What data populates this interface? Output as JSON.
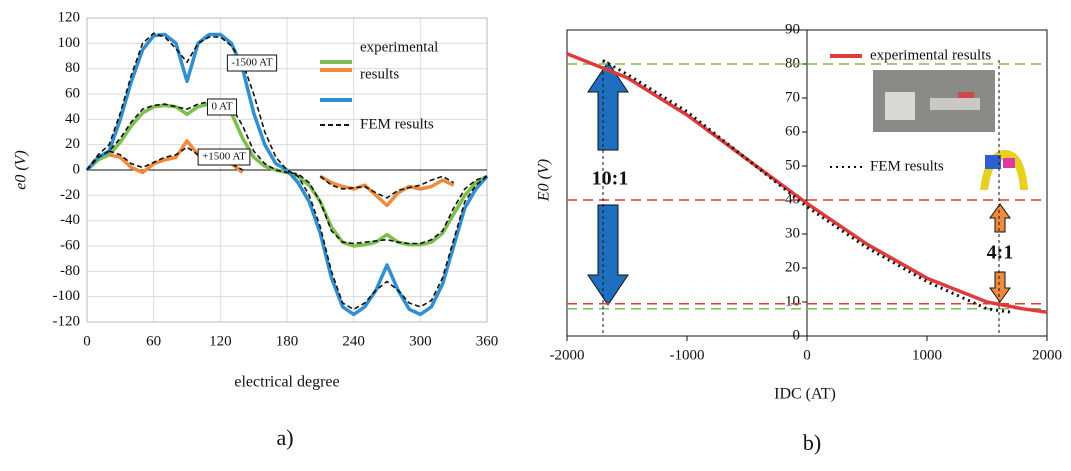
{
  "chart_data": [
    {
      "type": "line",
      "ylabel": "e0 (V)",
      "xlabel": "electrical degree",
      "caption": "a)",
      "xlim": [
        0,
        360
      ],
      "xticks": [
        0,
        60,
        120,
        180,
        240,
        300,
        360
      ],
      "ylim": [
        -120,
        120
      ],
      "yticks": [
        -120,
        -100,
        -80,
        -60,
        -40,
        -20,
        0,
        20,
        40,
        60,
        80,
        100,
        120
      ],
      "grid": true,
      "x": [
        0,
        10,
        20,
        30,
        40,
        50,
        60,
        70,
        80,
        90,
        100,
        110,
        120,
        130,
        140,
        150,
        160,
        170,
        180,
        190,
        200,
        210,
        220,
        230,
        240,
        250,
        260,
        270,
        280,
        290,
        300,
        310,
        320,
        330,
        340,
        350,
        360
      ],
      "series": [
        {
          "name": "experimental",
          "color": "#7cbf4e",
          "dash": false,
          "legend": true,
          "values": [
            0,
            8,
            12,
            22,
            35,
            45,
            50,
            51,
            50,
            44,
            50,
            52,
            53,
            45,
            25,
            10,
            3,
            0,
            -2,
            -5,
            -12,
            -25,
            -45,
            -57,
            -60,
            -59,
            -57,
            -51,
            -57,
            -59,
            -59,
            -57,
            -50,
            -35,
            -20,
            -10,
            -5
          ]
        },
        {
          "name": "results",
          "color": "#f08a3c",
          "dash": false,
          "legend": true,
          "values": [
            null,
            null,
            12,
            10,
            2,
            -2,
            5,
            8,
            10,
            23,
            12,
            10,
            12,
            5,
            -2,
            null,
            null,
            null,
            null,
            null,
            null,
            -5,
            -10,
            -13,
            -15,
            -12,
            -20,
            -28,
            -18,
            -13,
            -15,
            -13,
            -8,
            -12,
            null,
            null,
            null
          ]
        },
        {
          "name": null,
          "color": "#2f8fd0",
          "dash": false,
          "legend": true,
          "values": [
            0,
            10,
            15,
            40,
            70,
            95,
            106,
            107,
            100,
            70,
            100,
            107,
            107,
            100,
            80,
            45,
            20,
            5,
            0,
            -10,
            -25,
            -50,
            -85,
            -108,
            -114,
            -108,
            -95,
            -75,
            -95,
            -110,
            -114,
            -108,
            -90,
            -60,
            -30,
            -15,
            -5
          ]
        },
        {
          "name": "FEM results",
          "color": "#111111",
          "dash": true,
          "legend": true,
          "values": [
            0,
            12,
            20,
            45,
            75,
            100,
            108,
            105,
            96,
            85,
            100,
            105,
            105,
            98,
            85,
            60,
            30,
            10,
            0,
            -5,
            -20,
            -45,
            -80,
            -105,
            -110,
            -105,
            -95,
            -88,
            -95,
            -105,
            -108,
            -103,
            -85,
            -55,
            -25,
            -12,
            -5
          ]
        },
        {
          "name": null,
          "color": "#111111",
          "dash": true,
          "legend": false,
          "values": [
            0,
            10,
            15,
            25,
            38,
            48,
            51,
            52,
            50,
            48,
            52,
            54,
            55,
            50,
            35,
            15,
            5,
            0,
            -2,
            -3,
            -10,
            -25,
            -48,
            -57,
            -58,
            -57,
            -56,
            -55,
            -57,
            -58,
            -58,
            -55,
            -48,
            -30,
            -15,
            -8,
            -5
          ]
        },
        {
          "name": null,
          "color": "#111111",
          "dash": true,
          "legend": false,
          "values": [
            null,
            null,
            15,
            12,
            5,
            2,
            6,
            10,
            12,
            18,
            12,
            10,
            8,
            5,
            0,
            null,
            null,
            null,
            null,
            null,
            null,
            -5,
            -12,
            -15,
            -14,
            -13,
            -18,
            -22,
            -16,
            -14,
            -12,
            -8,
            -5,
            -10,
            null,
            null,
            null
          ]
        }
      ],
      "annotations": [
        "-1500 AT",
        "0 AT",
        "+1500 AT"
      ]
    },
    {
      "type": "line",
      "ylabel": "E0 (V)",
      "xlabel": "IDC (AT)",
      "caption": "b)",
      "xlim": [
        -2000,
        2000
      ],
      "xticks": [
        -2000,
        -1000,
        0,
        1000,
        2000
      ],
      "ylim": [
        0,
        90
      ],
      "yticks": [
        0,
        10,
        20,
        30,
        40,
        50,
        60,
        70,
        80,
        90
      ],
      "grid": false,
      "series": [
        {
          "name": "experimental results",
          "color": "#e03a3a",
          "dash": false,
          "legend": true,
          "x": [
            -2000,
            -1500,
            -1000,
            -500,
            0,
            500,
            1000,
            1500,
            1800,
            2000
          ],
          "values": [
            83,
            76,
            65,
            52,
            39,
            27,
            17,
            10,
            8,
            7
          ]
        },
        {
          "name": "FEM results",
          "color": "#111111",
          "dash": true,
          "legend": true,
          "x": [
            -1700,
            -1500,
            -1000,
            -500,
            0,
            500,
            1000,
            1500,
            1700
          ],
          "values": [
            81,
            77,
            66,
            52,
            38,
            26,
            16,
            8,
            7
          ]
        }
      ],
      "hlines": [
        {
          "value": 80,
          "color": "#7cbf4e"
        },
        {
          "value": 8,
          "color": "#7cbf4e"
        },
        {
          "value": 40,
          "color": "#e03a3a"
        },
        {
          "value": 9.5,
          "color": "#e03a3a"
        }
      ],
      "vlines": [
        -1700,
        1600
      ],
      "annotations": [
        "10:1",
        "4:1"
      ]
    }
  ]
}
